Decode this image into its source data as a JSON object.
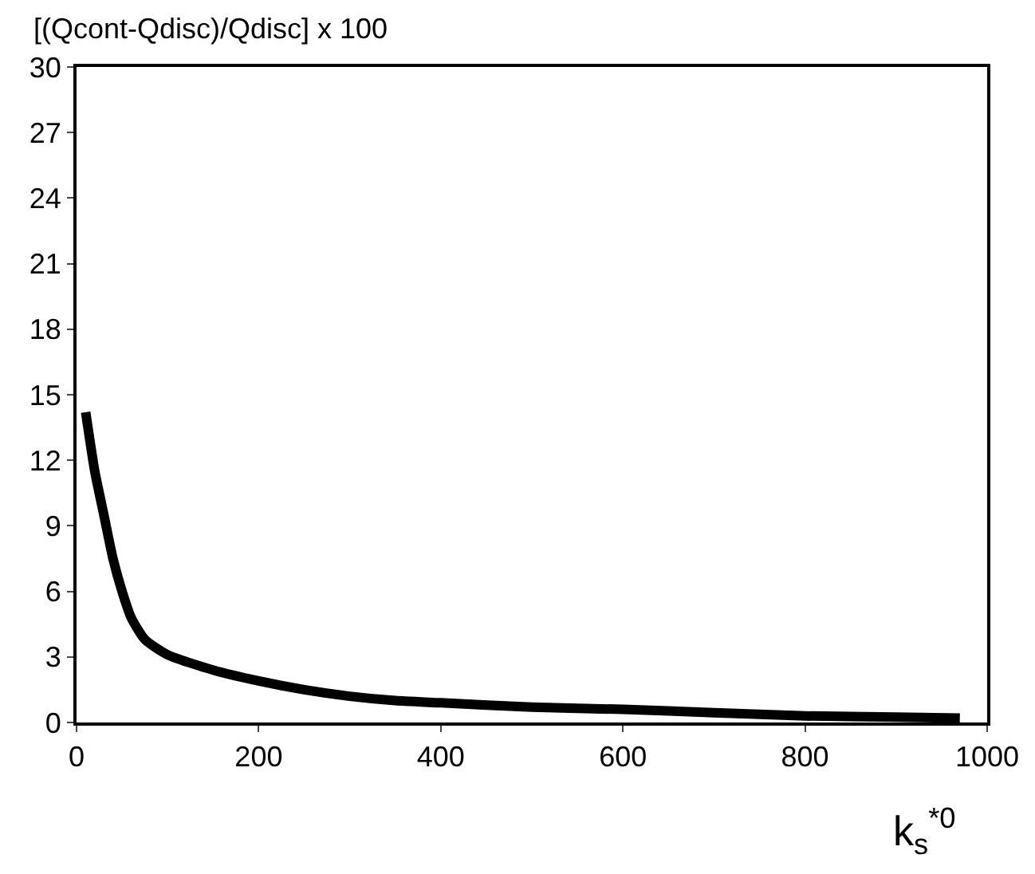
{
  "chart_data": {
    "type": "line",
    "ylabel": "[(Qcont-Qdisc)/Qdisc] x 100",
    "xlabel": "k$_{s}$$^{*0}$",
    "x": [
      10,
      20,
      30,
      40,
      50,
      60,
      75,
      100,
      150,
      200,
      250,
      300,
      350,
      400,
      500,
      600,
      700,
      800,
      900,
      970
    ],
    "series": [
      {
        "color": "#000000",
        "values": [
          14.2,
          11.5,
          9.5,
          7.5,
          6,
          4.8,
          3.8,
          3.1,
          2.4,
          1.9,
          1.5,
          1.2,
          1.0,
          0.9,
          0.7,
          0.6,
          0.45,
          0.3,
          0.25,
          0.2
        ]
      }
    ],
    "xlim": [
      0,
      1000
    ],
    "xticks": [
      0,
      200,
      400,
      600,
      800,
      1000
    ],
    "ylim": [
      0,
      30
    ],
    "yticks": [
      0,
      3,
      6,
      9,
      12,
      15,
      18,
      21,
      24,
      27,
      30
    ],
    "grid": false,
    "marker": "none",
    "line_style": "solid"
  }
}
